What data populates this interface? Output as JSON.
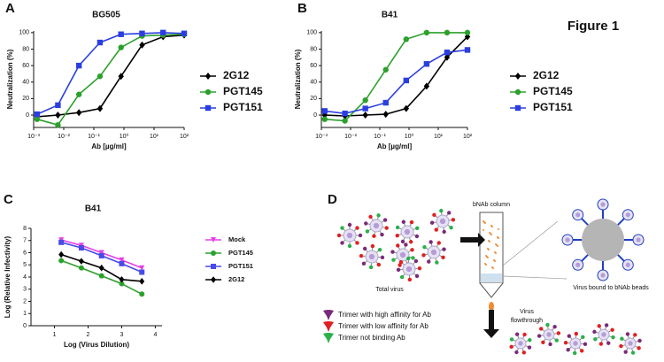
{
  "figure_label": "Figure 1",
  "panels": [
    "A",
    "B",
    "C",
    "D"
  ],
  "chart_data": [
    {
      "type": "line",
      "title": "BG505",
      "log_x": true,
      "xlabel": "Ab [µg/ml]",
      "ylabel": "Neutralization (%)",
      "x": [
        0.0013,
        0.0064,
        0.032,
        0.16,
        0.8,
        4,
        20,
        100
      ],
      "xlim": [
        0.001,
        100
      ],
      "xticks": [
        {
          "value": 0.001,
          "label": "10⁻³"
        },
        {
          "value": 0.01,
          "label": "10⁻²"
        },
        {
          "value": 0.1,
          "label": "10⁻¹"
        },
        {
          "value": 1,
          "label": "10⁰"
        },
        {
          "value": 10,
          "label": "10¹"
        },
        {
          "value": 100,
          "label": "10²"
        }
      ],
      "ylim": [
        -15,
        102
      ],
      "yticks": [
        0,
        20,
        40,
        60,
        80,
        100
      ],
      "series": [
        {
          "name": "2G12",
          "color": "#000000",
          "marker": "diamond",
          "values": [
            -2,
            0,
            3,
            8,
            47,
            85,
            95,
            97
          ]
        },
        {
          "name": "PGT145",
          "color": "#2ca02c",
          "marker": "circle",
          "values": [
            -5,
            -12,
            25,
            47,
            82,
            96,
            97,
            98
          ]
        },
        {
          "name": "PGT151",
          "color": "#2b3fe0",
          "marker": "square",
          "values": [
            1,
            12,
            60,
            88,
            98,
            99,
            100,
            99
          ]
        }
      ]
    },
    {
      "type": "line",
      "title": "B41",
      "log_x": true,
      "xlabel": "Ab [µg/ml]",
      "ylabel": "Neutralization (%)",
      "x": [
        0.0013,
        0.0064,
        0.032,
        0.16,
        0.8,
        4,
        20,
        100
      ],
      "xlim": [
        0.001,
        100
      ],
      "xticks": [
        {
          "value": 0.001,
          "label": "10⁻³"
        },
        {
          "value": 0.01,
          "label": "10⁻²"
        },
        {
          "value": 0.1,
          "label": "10⁻¹"
        },
        {
          "value": 1,
          "label": "10⁰"
        },
        {
          "value": 10,
          "label": "10¹"
        },
        {
          "value": 100,
          "label": "10²"
        }
      ],
      "ylim": [
        -15,
        102
      ],
      "yticks": [
        0,
        20,
        40,
        60,
        80,
        100
      ],
      "series": [
        {
          "name": "2G12",
          "color": "#000000",
          "marker": "diamond",
          "values": [
            0,
            -1,
            0,
            1,
            8,
            35,
            70,
            95
          ]
        },
        {
          "name": "PGT145",
          "color": "#2ca02c",
          "marker": "circle",
          "values": [
            -5,
            -7,
            18,
            55,
            92,
            100,
            100,
            100
          ]
        },
        {
          "name": "PGT151",
          "color": "#2b3fe0",
          "marker": "square",
          "values": [
            5,
            2,
            8,
            15,
            42,
            62,
            76,
            79
          ]
        }
      ]
    },
    {
      "type": "line",
      "title": "B41",
      "log_x": false,
      "xlabel": "Log (Virus Dilution)",
      "ylabel": "Log (Relative Infectivity)",
      "x": [
        1.2,
        1.8,
        2.4,
        3.0,
        3.6
      ],
      "xlim": [
        0.3,
        4.2
      ],
      "xticks": [
        1,
        2,
        3,
        4
      ],
      "ylim": [
        0,
        8
      ],
      "yticks": [
        0,
        1,
        2,
        3,
        4,
        5,
        6,
        7,
        8
      ],
      "series": [
        {
          "name": "Mock",
          "color": "#e640e6",
          "marker": "triangle",
          "values": [
            7.05,
            6.6,
            6.0,
            5.4,
            4.75
          ]
        },
        {
          "name": "PGT145",
          "color": "#2ca02c",
          "marker": "circle",
          "values": [
            5.35,
            4.75,
            4.1,
            3.45,
            2.6
          ]
        },
        {
          "name": "PGT151",
          "color": "#4a4ae8",
          "marker": "square",
          "values": [
            6.85,
            6.4,
            5.75,
            5.1,
            4.4
          ]
        },
        {
          "name": "2G12",
          "color": "#000000",
          "marker": "diamond",
          "values": [
            5.85,
            5.3,
            4.75,
            3.8,
            3.65
          ]
        }
      ]
    }
  ],
  "diagram": {
    "column_label": "bNAb column",
    "total_virus": "Total virus",
    "bound": "Virus bound to bNAb beads",
    "flowthrough": [
      "Virus",
      "flowthrough"
    ],
    "legend": [
      {
        "label": "Trimer with high affinity for Ab",
        "color": "#7a2a7a"
      },
      {
        "label": "Trimer with low affinity for Ab",
        "color": "#e02020"
      },
      {
        "label": "Trimer not binding Ab",
        "color": "#2ab04a"
      }
    ]
  }
}
